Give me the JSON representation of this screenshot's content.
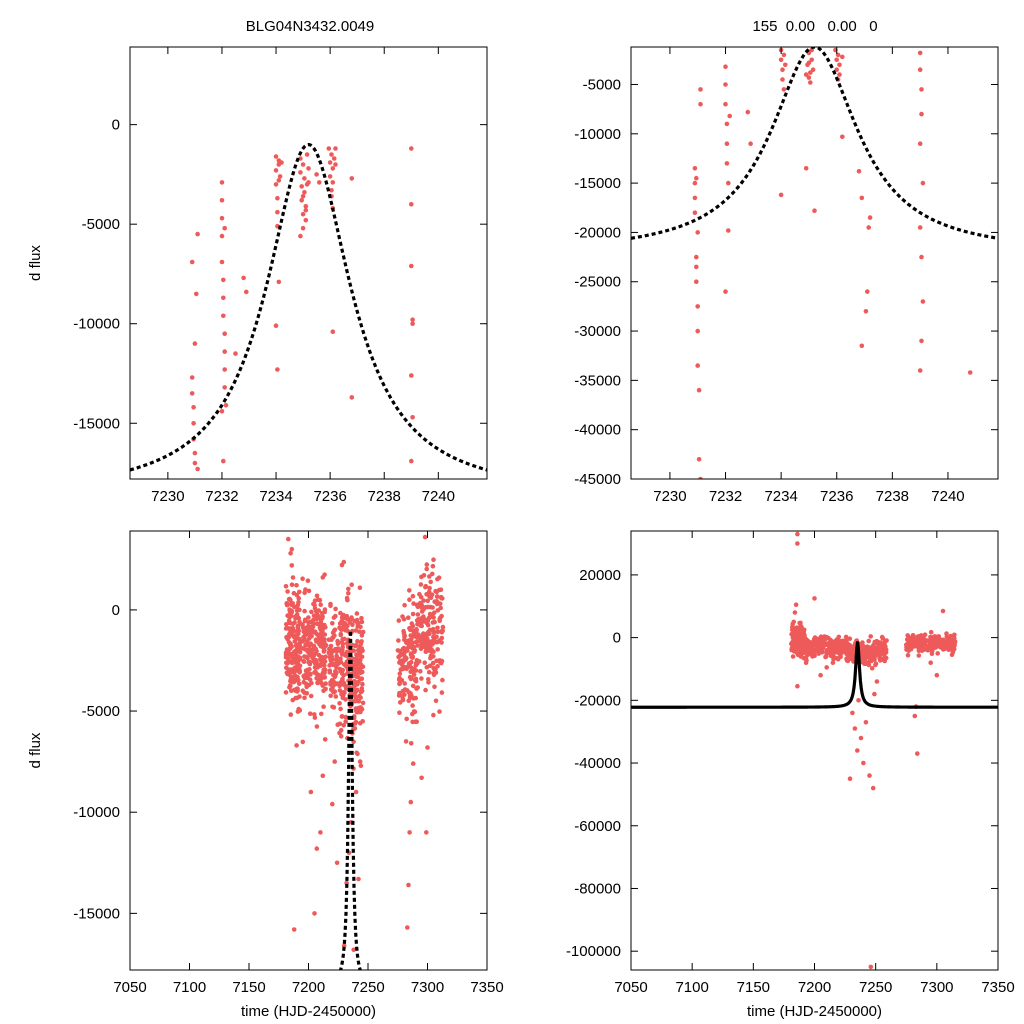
{
  "title_left": "BLG04N3432.0049",
  "title_right": "155  0.00   0.00   0",
  "ylabel": "d flux",
  "xlabel": "time (HJD-2450000)",
  "colors": {
    "points": "#ee5a5a",
    "model": "#000000",
    "frame": "#000000"
  },
  "chart_data": [
    {
      "id": "top-left",
      "type": "scatter",
      "xlim": [
        7228.6,
        7241.8
      ],
      "ylim": [
        -17800,
        3900
      ],
      "xticks": [
        7230,
        7232,
        7234,
        7236,
        7238,
        7240
      ],
      "yticks": [
        0,
        -5000,
        -10000,
        -15000
      ],
      "show_xticklabels": true,
      "ylabel": "d flux",
      "xlabel": "",
      "model": {
        "t0": 7235.2,
        "peak": -1000,
        "amp": 17700,
        "width": 1.9,
        "style": "dashed"
      },
      "series": [
        {
          "name": "data",
          "x": [
            7230.9,
            7230.9,
            7230.9,
            7230.95,
            7230.95,
            7230.95,
            7231.0,
            7231.0,
            7231.0,
            7231.05,
            7231.1,
            7231.1,
            7232.0,
            7232.0,
            7232.0,
            7232.0,
            7232.0,
            7232.05,
            7232.05,
            7232.05,
            7232.1,
            7232.1,
            7232.1,
            7232.1,
            7232.15,
            7232.0,
            7232.05,
            7232.1,
            7232.5,
            7232.8,
            7232.9,
            7234.0,
            7234.0,
            7234.0,
            7234.05,
            7234.05,
            7234.05,
            7234.1,
            7234.1,
            7234.1,
            7234.1,
            7234.15,
            7234.2,
            7234.0,
            7234.05,
            7234.9,
            7234.9,
            7234.95,
            7234.95,
            7235.0,
            7235.0,
            7235.0,
            7235.05,
            7235.05,
            7235.1,
            7235.1,
            7235.15,
            7235.15,
            7235.2,
            7235.2,
            7234.9,
            7235.0,
            7235.1,
            7235.95,
            7236.0,
            7236.0,
            7236.05,
            7236.05,
            7236.1,
            7236.1,
            7236.1,
            7236.15,
            7236.2,
            7236.05,
            7236.1,
            7235.5,
            7235.6,
            7236.8,
            7236.8,
            7236.2,
            7239.0,
            7239.0,
            7239.0,
            7239.05,
            7239.05,
            7239.0,
            7239.05,
            7239.0
          ],
          "y": [
            -6900,
            -12700,
            -13500,
            -14200,
            -15000,
            -15800,
            -16500,
            -17000,
            -11000,
            -8500,
            -5500,
            -17300,
            -2900,
            -3800,
            -4700,
            -5600,
            -6900,
            -7800,
            -8700,
            -9600,
            -10500,
            -11400,
            -12300,
            -13200,
            -14100,
            -14400,
            -16900,
            -5200,
            -11500,
            -7700,
            -8400,
            -1600,
            -2300,
            -3000,
            -3700,
            -4400,
            -5100,
            -2000,
            -2800,
            -1800,
            -7900,
            -2600,
            -1900,
            -10100,
            -12300,
            -1700,
            -2400,
            -3100,
            -3800,
            -4500,
            -5200,
            -2000,
            -2700,
            -3400,
            -4100,
            -4800,
            -3000,
            -1500,
            -2200,
            -2900,
            -5600,
            -3600,
            -4300,
            -1200,
            -1900,
            -2600,
            -3300,
            -1500,
            -2200,
            -2900,
            -10400,
            -1700,
            -1200,
            -3600,
            -4200,
            -2500,
            -2900,
            -2700,
            -13700,
            -2000,
            -1200,
            -4000,
            -7100,
            -9800,
            -10000,
            -12600,
            -14700,
            -16900
          ]
        }
      ]
    },
    {
      "id": "top-right",
      "type": "scatter",
      "xlim": [
        7228.6,
        7241.8
      ],
      "ylim": [
        -45000,
        -1200
      ],
      "xticks": [
        7230,
        7232,
        7234,
        7236,
        7238,
        7240
      ],
      "yticks": [
        -5000,
        -10000,
        -15000,
        -20000,
        -25000,
        -30000,
        -35000,
        -40000,
        -45000
      ],
      "show_xticklabels": true,
      "ylabel": "",
      "xlabel": "",
      "model": {
        "t0": 7235.2,
        "peak": -1200,
        "amp": 21000,
        "width": 1.9,
        "style": "dashed"
      },
      "series": [
        {
          "name": "data",
          "x": [
            7230.9,
            7230.9,
            7230.9,
            7230.9,
            7230.95,
            7230.95,
            7230.95,
            7231.0,
            7231.0,
            7231.0,
            7231.05,
            7231.05,
            7231.1,
            7231.1,
            7231.1,
            7230.95,
            7231.0,
            7232.0,
            7232.0,
            7232.0,
            7232.05,
            7232.05,
            7232.05,
            7232.1,
            7232.1,
            7232.0,
            7232.15,
            7232.8,
            7232.9,
            7234.0,
            7234.0,
            7234.05,
            7234.05,
            7234.1,
            7234.1,
            7234.0,
            7234.15,
            7234.9,
            7234.9,
            7235.0,
            7235.0,
            7235.05,
            7235.05,
            7235.1,
            7235.1,
            7235.15,
            7235.2,
            7235.0,
            7234.95,
            7235.95,
            7236.0,
            7236.0,
            7236.05,
            7236.05,
            7236.1,
            7236.1,
            7236.2,
            7236.2,
            7236.8,
            7236.9,
            7236.9,
            7237.05,
            7237.1,
            7237.15,
            7237.2,
            7239.0,
            7239.0,
            7239.05,
            7239.05,
            7239.0,
            7239.1,
            7239.0,
            7239.05,
            7239.1,
            7239.05,
            7239.0,
            7240.8
          ],
          "y": [
            -13500,
            -15000,
            -16500,
            -18000,
            -22500,
            -23500,
            -25000,
            -27500,
            -30000,
            -33500,
            -36000,
            -43000,
            -45000,
            -7000,
            -5500,
            -14500,
            -20000,
            -3200,
            -5000,
            -7000,
            -9000,
            -11000,
            -13000,
            -15000,
            -19800,
            -26000,
            -8200,
            -7800,
            -11000,
            -1500,
            -2500,
            -3500,
            -4500,
            -5500,
            -2000,
            -16200,
            -3000,
            -4000,
            -13500,
            -1800,
            -2800,
            -3800,
            -4800,
            -1500,
            -2500,
            -3500,
            -17800,
            -4300,
            -3000,
            -1500,
            -2500,
            -3500,
            -4500,
            -2000,
            -3000,
            -4000,
            -10300,
            -2200,
            -13800,
            -16500,
            -31500,
            -28000,
            -26000,
            -19500,
            -18500,
            -1800,
            -3500,
            -5500,
            -8000,
            -11000,
            -15000,
            -19500,
            -22500,
            -27000,
            -31000,
            -34000,
            -34200
          ]
        }
      ]
    },
    {
      "id": "bottom-left",
      "type": "scatter",
      "xlim": [
        7050,
        7350
      ],
      "ylim": [
        -17800,
        3900
      ],
      "xticks": [
        7050,
        7100,
        7150,
        7200,
        7250,
        7300,
        7350
      ],
      "yticks": [
        0,
        -5000,
        -10000,
        -15000
      ],
      "show_xticklabels": true,
      "ylabel": "d flux",
      "xlabel": "time (HJD-2450000)",
      "model": {
        "t0": 7235.2,
        "peak": -1000,
        "amp": 17700,
        "width": 1.9,
        "style": "dashed"
      },
      "clusters": [
        {
          "xmin": 7181,
          "xmax": 7193,
          "ymid": -1800,
          "spread": 1400,
          "n": 190,
          "outliers": [
            [
              7183,
              3500
            ],
            [
              7185,
              2800
            ],
            [
              7186,
              2200
            ],
            [
              7187,
              1600
            ],
            [
              7190,
              -6700
            ],
            [
              7188,
              -15800
            ],
            [
              7186,
              3000
            ]
          ]
        },
        {
          "xmin": 7195,
          "xmax": 7215,
          "ymid": -2000,
          "spread": 1300,
          "n": 220,
          "outliers": [
            [
              7205,
              -15000
            ],
            [
              7207,
              -11800
            ],
            [
              7210,
              -11000
            ],
            [
              7202,
              -9000
            ],
            [
              7212,
              -8200
            ],
            [
              7214,
              -6400
            ]
          ]
        },
        {
          "xmin": 7217,
          "xmax": 7225,
          "ymid": -2600,
          "spread": 1200,
          "n": 80,
          "outliers": [
            [
              7220,
              -9600
            ],
            [
              7222,
              -7500
            ],
            [
              7224,
              -12500
            ]
          ]
        },
        {
          "xmin": 7226,
          "xmax": 7246,
          "ymid": -3000,
          "spread": 1700,
          "n": 260,
          "outliers": [
            [
              7230,
              -16600
            ],
            [
              7232,
              -13500
            ],
            [
              7234,
              -12000
            ],
            [
              7236,
              -10500
            ],
            [
              7240,
              -9000
            ],
            [
              7242,
              -13300
            ],
            [
              7238,
              -16800
            ],
            [
              7244,
              -7700
            ]
          ]
        },
        {
          "xmin": 7275,
          "xmax": 7291,
          "ymid": -2600,
          "spread": 1400,
          "n": 140,
          "outliers": [
            [
              7283,
              -15700
            ],
            [
              7284,
              -13600
            ],
            [
              7285,
              -11000
            ],
            [
              7286,
              -9500
            ],
            [
              7288,
              -7600
            ],
            [
              7282,
              -6500
            ]
          ]
        },
        {
          "xmin": 7291,
          "xmax": 7313,
          "ymid": -1100,
          "spread": 1500,
          "n": 190,
          "outliers": [
            [
              7295,
              -8300
            ],
            [
              7300,
              -6800
            ],
            [
              7305,
              -5200
            ],
            [
              7299,
              -11000
            ],
            [
              7298,
              3600
            ],
            [
              7290,
              4000
            ]
          ]
        }
      ]
    },
    {
      "id": "bottom-right",
      "type": "scatter",
      "xlim": [
        7050,
        7350
      ],
      "ylim": [
        -106000,
        34000
      ],
      "xticks": [
        7050,
        7100,
        7150,
        7200,
        7250,
        7300,
        7350
      ],
      "yticks": [
        20000,
        0,
        -20000,
        -40000,
        -60000,
        -80000,
        -100000
      ],
      "show_xticklabels": true,
      "ylabel": "",
      "xlabel": "time (HJD-2450000)",
      "model": {
        "t0": 7235.2,
        "peak": -1200,
        "amp": 21000,
        "width": 1.9,
        "style": "solid"
      },
      "clusters": [
        {
          "xmin": 7181,
          "xmax": 7192,
          "ymid": -1000,
          "spread": 2500,
          "n": 150,
          "outliers": [
            [
              7186,
              33000
            ],
            [
              7186,
              30000
            ],
            [
              7185,
              10500
            ],
            [
              7184,
              8000
            ],
            [
              7183,
              5000
            ],
            [
              7186,
              -15500
            ]
          ]
        },
        {
          "xmin": 7192,
          "xmax": 7226,
          "ymid": -3000,
          "spread": 1500,
          "n": 230,
          "outliers": [
            [
              7200,
              12500
            ],
            [
              7210,
              -9500
            ],
            [
              7215,
              -8000
            ],
            [
              7205,
              -12000
            ]
          ]
        },
        {
          "xmin": 7226,
          "xmax": 7259,
          "ymid": -4500,
          "spread": 1800,
          "n": 230,
          "outliers": [
            [
              7231,
              -24000
            ],
            [
              7233,
              -29000
            ],
            [
              7235,
              -36000
            ],
            [
              7240,
              -40000
            ],
            [
              7245,
              -44000
            ],
            [
              7248,
              -48000
            ],
            [
              7229,
              -45000
            ],
            [
              7238,
              -32000
            ],
            [
              7242,
              -27000
            ],
            [
              7249,
              -18000
            ],
            [
              7251,
              -14000
            ],
            [
              7236,
              -20000
            ],
            [
              7246,
              -105000
            ]
          ]
        },
        {
          "xmin": 7275,
          "xmax": 7315,
          "ymid": -2000,
          "spread": 1500,
          "n": 220,
          "outliers": [
            [
              7282,
              -25000
            ],
            [
              7283,
              -22000
            ],
            [
              7284,
              -37000
            ],
            [
              7300,
              -12000
            ],
            [
              7305,
              8500
            ],
            [
              7295,
              -8000
            ]
          ]
        }
      ]
    }
  ]
}
